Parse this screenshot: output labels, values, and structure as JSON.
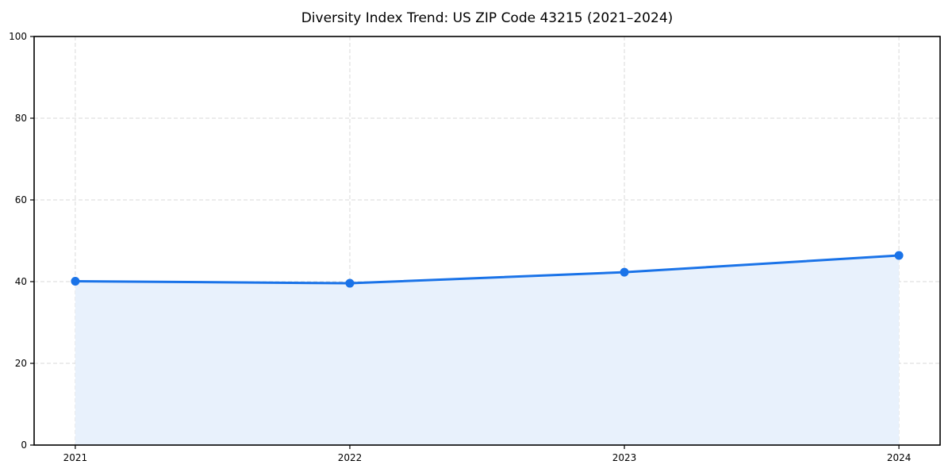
{
  "chart_data": {
    "type": "area",
    "title": "Diversity Index Trend: US ZIP Code 43215 (2021–2024)",
    "categories": [
      "2021",
      "2022",
      "2023",
      "2024"
    ],
    "x": [
      2021,
      2022,
      2023,
      2024
    ],
    "series": [
      {
        "name": "Diversity Index",
        "values": [
          40.1,
          39.6,
          42.3,
          46.4
        ]
      }
    ],
    "xlabel": "",
    "ylabel": "",
    "ylim": [
      0,
      100
    ],
    "yticks": [
      0,
      20,
      40,
      60,
      80,
      100
    ],
    "x_margin_fraction": 0.05,
    "grid": true,
    "grid_style": "dashed",
    "legend_position": "none",
    "colors": {
      "line": "#1a73e8",
      "marker": "#1a73e8",
      "fill": "#e8f1fc",
      "grid": "#d9d9d9",
      "axis": "#000000",
      "text": "#000000",
      "background": "#ffffff"
    }
  }
}
